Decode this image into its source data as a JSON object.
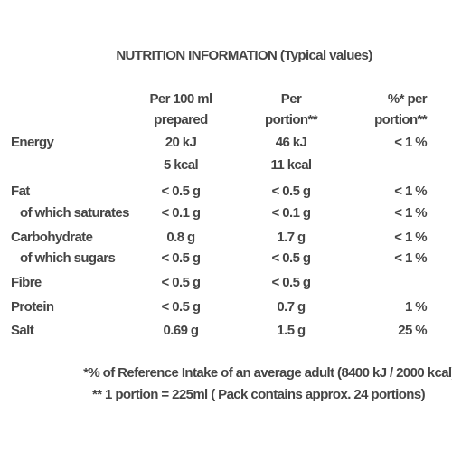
{
  "header": {
    "title": "NUTRITION INFORMATION (Typical values)"
  },
  "table": {
    "columns": [
      [
        "Per 100 ml",
        "prepared"
      ],
      [
        "Per",
        "portion**"
      ],
      [
        "%* per",
        "portion**"
      ]
    ],
    "rows": [
      {
        "label": "Energy",
        "cells": [
          "20 kJ",
          "46 kJ",
          "< 1 %"
        ]
      },
      {
        "label": null,
        "cells": [
          "5 kcal",
          "11 kcal",
          null
        ]
      },
      {
        "label": "Fat",
        "cells": [
          "< 0.5 g",
          "< 0.5 g",
          "< 1 %"
        ]
      },
      {
        "label": "of which saturates",
        "cells": [
          "< 0.1 g",
          "< 0.1 g",
          "< 1 %"
        ]
      },
      {
        "label": "Carbohydrate",
        "cells": [
          "0.8 g",
          "1.7 g",
          "< 1 %"
        ]
      },
      {
        "label": "of which sugars",
        "cells": [
          "< 0.5 g",
          "< 0.5 g",
          "< 1 %"
        ]
      },
      {
        "label": "Fibre",
        "cells": [
          "< 0.5 g",
          "< 0.5 g",
          null
        ]
      },
      {
        "label": "Protein",
        "cells": [
          "< 0.5 g",
          "0.7 g",
          "1 %"
        ]
      },
      {
        "label": "Salt",
        "cells": [
          "0.69 g",
          "1.5 g",
          "25 %"
        ]
      }
    ]
  },
  "footnotes": [
    "*% of Reference Intake of an average adult (8400 kJ / 2000 kcal)",
    "** 1 portion = 225ml ( Pack contains approx. 24 portions)"
  ]
}
